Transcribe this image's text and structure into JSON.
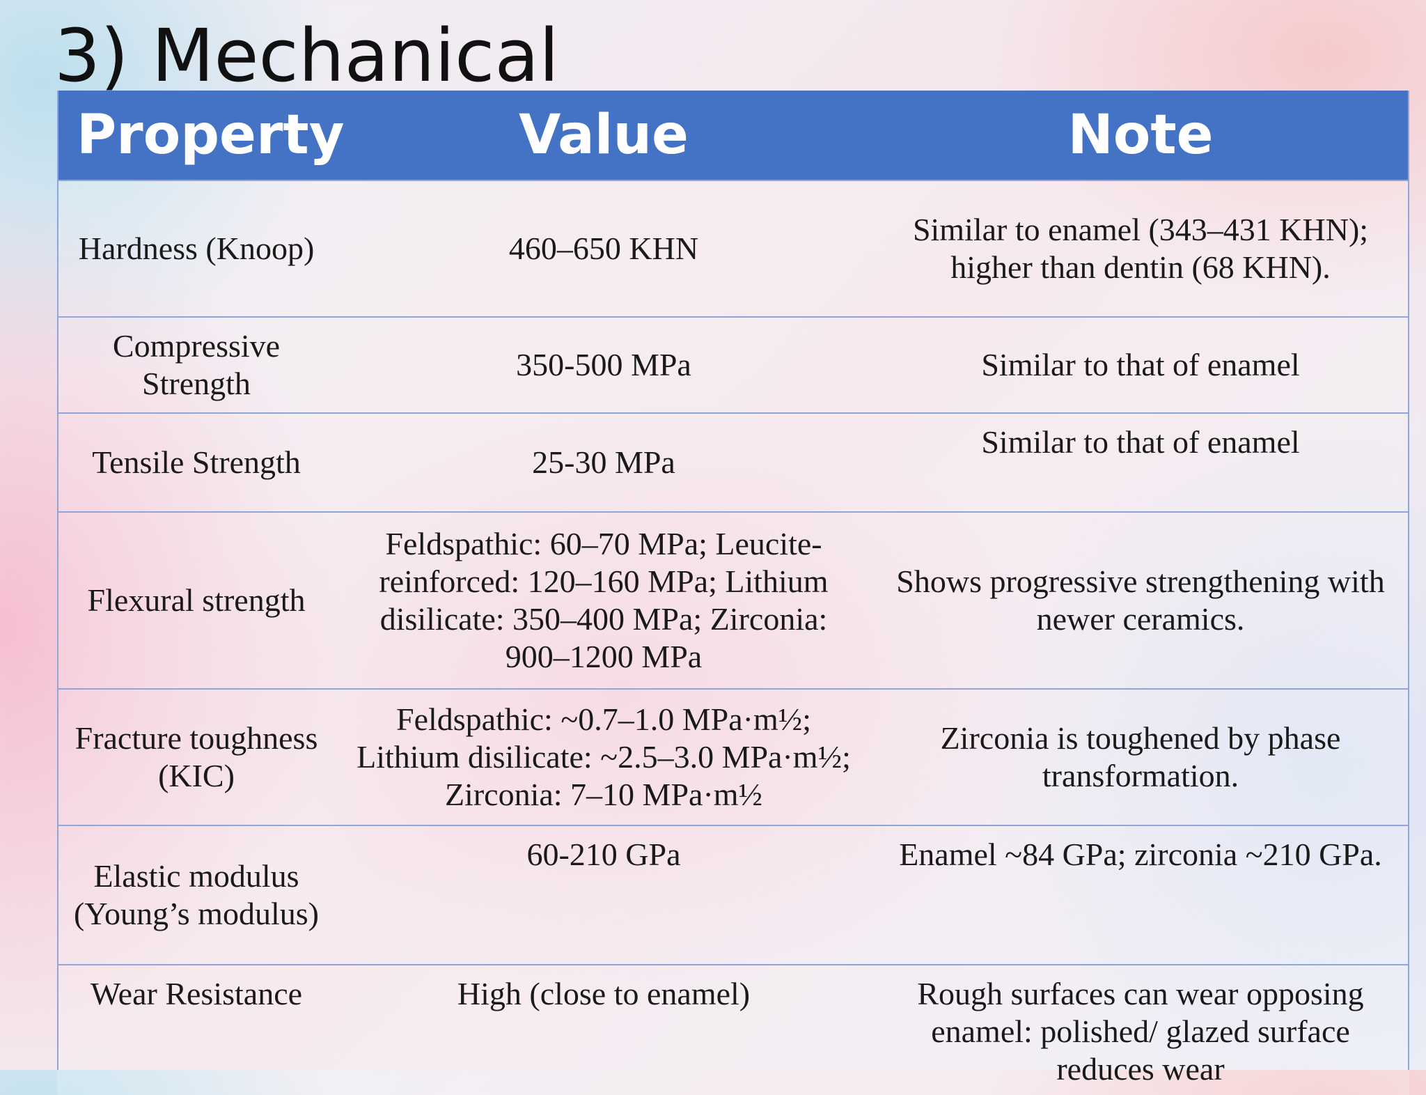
{
  "slide": {
    "title": "3) Mechanical"
  },
  "table": {
    "headers": {
      "property": "Property",
      "value": "Value",
      "note": "Note"
    },
    "rows": [
      {
        "property": "Hardness (Knoop)",
        "value": "460–650 KHN",
        "note": "Similar to enamel (343–431 KHN); higher than dentin (68 KHN)."
      },
      {
        "property": "Compressive Strength",
        "value": "350-500 MPa",
        "note": "Similar to that of enamel"
      },
      {
        "property": "Tensile Strength",
        "value": "25-30 MPa",
        "note": "Similar to that of enamel"
      },
      {
        "property": "Flexural strength",
        "value": "Feldspathic: 60–70 MPa; Leucite-reinforced: 120–160 MPa; Lithium disilicate: 350–400 MPa; Zirconia: 900–1200 MPa",
        "note": "Shows progressive strengthening with newer ceramics."
      },
      {
        "property": "Fracture toughness (KIC)",
        "value": "Feldspathic: ~0.7–1.0 MPa·m½; Lithium disilicate: ~2.5–3.0 MPa·m½; Zirconia: 7–10 MPa·m½",
        "note": "Zirconia is toughened by phase transformation."
      },
      {
        "property": "Elastic modulus (Young’s modulus)",
        "value": "60-210 GPa",
        "note": "Enamel ~84 GPa; zirconia ~210 GPa."
      },
      {
        "property": "Wear Resistance",
        "value": "High (close to enamel)",
        "note": "Rough surfaces can wear opposing enamel: polished/ glazed surface reduces wear"
      }
    ]
  }
}
